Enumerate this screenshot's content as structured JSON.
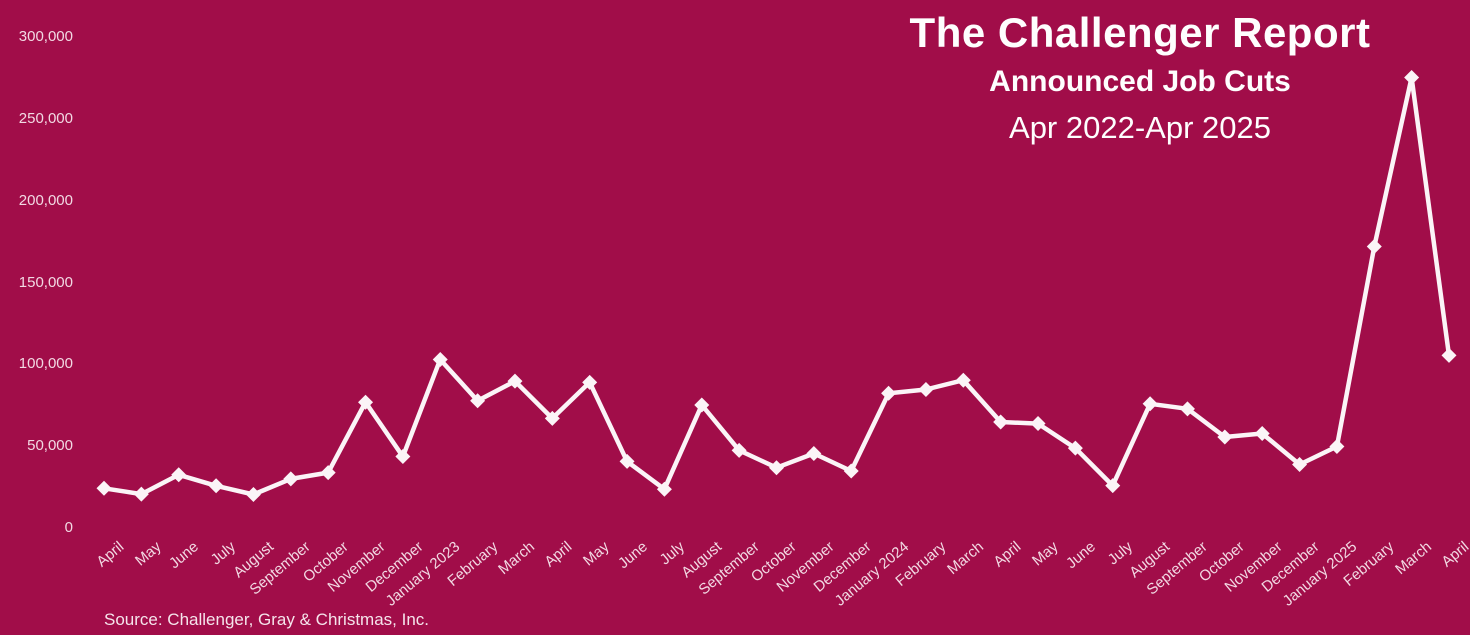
{
  "header": {
    "title": "The Challenger Report",
    "subtitle": "Announced Job Cuts",
    "period": "Apr 2022-Apr 2025"
  },
  "source_note": "Source: Challenger, Gray & Christmas, Inc.",
  "colors": {
    "background": "#A10D49",
    "line": "#FBF4F7",
    "marker": "#FBF4F7",
    "axis_text": "#F2D9E3",
    "title_text": "#FEFEFE",
    "footer_strip": "#FFFFFF"
  },
  "chart_data": {
    "type": "line",
    "title": "The Challenger Report",
    "subtitle": "Announced Job Cuts",
    "period_label": "Apr 2022-Apr 2025",
    "categories": [
      "April",
      "May",
      "June",
      "July",
      "August",
      "September",
      "October",
      "November",
      "December",
      "January 2023",
      "February",
      "March",
      "April",
      "May",
      "June",
      "July",
      "August",
      "September",
      "October",
      "November",
      "December",
      "January 2024",
      "February",
      "March",
      "April",
      "May",
      "June",
      "July",
      "August",
      "September",
      "October",
      "November",
      "December",
      "January 2025",
      "February",
      "March",
      "April"
    ],
    "values": [
      24286,
      20712,
      32517,
      25810,
      20485,
      29989,
      33843,
      76835,
      43651,
      102943,
      77770,
      89703,
      66995,
      89000,
      40709,
      23697,
      75151,
      47457,
      36836,
      45510,
      34817,
      82307,
      84638,
      90309,
      64789,
      63816,
      48786,
      25885,
      75891,
      72821,
      55597,
      57727,
      38792,
      49795,
      172017,
      275240,
      105441
    ],
    "ylim": [
      0,
      300000
    ],
    "ytick_step": 50000,
    "ytick_labels": [
      "0",
      "50,000",
      "100,000",
      "150,000",
      "200,000",
      "250,000",
      "300,000"
    ],
    "xlabel": "",
    "ylabel": "",
    "marker": "diamond",
    "grid": false,
    "legend": false,
    "line_color": "#FBF4F7",
    "background_color": "#A10D49"
  }
}
